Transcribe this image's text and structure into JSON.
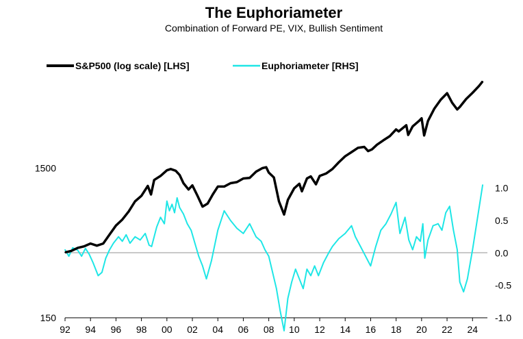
{
  "chart_data": {
    "type": "line",
    "title": "The Euphoriameter",
    "subtitle": "Combination of Forward PE, VIX, Bullish Sentiment",
    "x_axis": {
      "range": [
        1992,
        2024.9
      ],
      "tick_values": [
        1992,
        1994,
        1996,
        1998,
        2000,
        2002,
        2004,
        2006,
        2008,
        2010,
        2012,
        2014,
        2016,
        2018,
        2020,
        2022,
        2024
      ],
      "tick_labels": [
        "92",
        "94",
        "96",
        "98",
        "00",
        "02",
        "04",
        "06",
        "08",
        "10",
        "12",
        "14",
        "16",
        "18",
        "20",
        "22",
        "24"
      ]
    },
    "y_left": {
      "scale": "log",
      "range": [
        150,
        15000
      ],
      "tick_values": [
        150,
        1500
      ],
      "tick_labels": [
        "150",
        "1500"
      ]
    },
    "y_right": {
      "scale": "linear",
      "range": [
        -1.0,
        2.0
      ],
      "tick_values": [
        1.0,
        0.5,
        0.0,
        -0.5,
        -1.0
      ],
      "tick_labels": [
        "1.0",
        "0.5",
        "0.0",
        "-0.5",
        "-1.0"
      ]
    },
    "zero_line": true,
    "grid": false,
    "legend_position": "top-left",
    "series": [
      {
        "name": "S&P500 (log scale) [LHS]",
        "axis": "left",
        "color": "#000000",
        "x": [
          1992.0,
          1992.5,
          1993.0,
          1993.5,
          1994.0,
          1994.5,
          1995.0,
          1995.5,
          1996.0,
          1996.5,
          1997.0,
          1997.5,
          1998.0,
          1998.5,
          1998.75,
          1999.0,
          1999.5,
          2000.0,
          2000.3,
          2000.7,
          2001.0,
          2001.3,
          2001.7,
          2002.0,
          2002.4,
          2002.8,
          2003.2,
          2003.6,
          2004.0,
          2004.5,
          2005.0,
          2005.5,
          2006.0,
          2006.5,
          2007.0,
          2007.5,
          2007.8,
          2008.0,
          2008.4,
          2008.8,
          2009.2,
          2009.5,
          2010.0,
          2010.4,
          2010.6,
          2011.0,
          2011.3,
          2011.7,
          2012.0,
          2012.5,
          2013.0,
          2013.5,
          2014.0,
          2014.5,
          2015.0,
          2015.5,
          2015.8,
          2016.1,
          2016.5,
          2017.0,
          2017.5,
          2018.0,
          2018.2,
          2018.8,
          2018.95,
          2019.3,
          2019.8,
          2020.0,
          2020.2,
          2020.5,
          2021.0,
          2021.5,
          2022.0,
          2022.4,
          2022.8,
          2023.0,
          2023.5,
          2024.0,
          2024.5,
          2024.8
        ],
        "y": [
          410,
          420,
          440,
          450,
          470,
          455,
          470,
          540,
          620,
          680,
          770,
          900,
          980,
          1140,
          1000,
          1250,
          1330,
          1450,
          1480,
          1440,
          1350,
          1190,
          1080,
          1150,
          980,
          830,
          870,
          1000,
          1130,
          1130,
          1190,
          1210,
          1280,
          1290,
          1420,
          1500,
          1520,
          1400,
          1300,
          900,
          735,
          920,
          1100,
          1180,
          1050,
          1280,
          1320,
          1170,
          1330,
          1380,
          1480,
          1640,
          1800,
          1920,
          2050,
          2080,
          1950,
          2000,
          2150,
          2300,
          2450,
          2720,
          2640,
          2900,
          2500,
          2850,
          3100,
          3230,
          2480,
          3100,
          3750,
          4300,
          4750,
          4100,
          3700,
          3850,
          4350,
          4780,
          5300,
          5700
        ]
      },
      {
        "name": "Euphoriameter [RHS]",
        "axis": "right",
        "color": "#1EE6E6",
        "x": [
          1992.0,
          1992.3,
          1992.6,
          1993.0,
          1993.3,
          1993.6,
          1993.9,
          1994.2,
          1994.6,
          1994.9,
          1995.2,
          1995.5,
          1995.8,
          1996.2,
          1996.5,
          1996.8,
          1997.1,
          1997.5,
          1997.9,
          1998.3,
          1998.6,
          1998.8,
          1999.2,
          1999.5,
          1999.8,
          2000.0,
          2000.2,
          2000.4,
          2000.6,
          2000.8,
          2001.0,
          2001.3,
          2001.6,
          2001.9,
          2002.2,
          2002.5,
          2002.8,
          2003.1,
          2003.5,
          2004.0,
          2004.5,
          2005.0,
          2005.5,
          2006.0,
          2006.5,
          2007.0,
          2007.4,
          2007.7,
          2008.0,
          2008.3,
          2008.6,
          2008.9,
          2009.2,
          2009.5,
          2009.8,
          2010.1,
          2010.4,
          2010.7,
          2011.0,
          2011.3,
          2011.6,
          2011.9,
          2012.3,
          2012.7,
          2013.0,
          2013.5,
          2014.0,
          2014.5,
          2014.8,
          2015.2,
          2015.6,
          2016.0,
          2016.4,
          2016.8,
          2017.2,
          2017.6,
          2018.0,
          2018.3,
          2018.7,
          2019.0,
          2019.3,
          2019.6,
          2019.9,
          2020.1,
          2020.25,
          2020.5,
          2020.9,
          2021.3,
          2021.6,
          2021.9,
          2022.2,
          2022.5,
          2022.8,
          2023.0,
          2023.3,
          2023.6,
          2024.0,
          2024.4,
          2024.8
        ],
        "y": [
          0.05,
          -0.05,
          0.08,
          0.04,
          -0.05,
          0.07,
          -0.02,
          -0.15,
          -0.35,
          -0.3,
          -0.08,
          0.05,
          0.15,
          0.25,
          0.18,
          0.28,
          0.15,
          0.25,
          0.2,
          0.3,
          0.12,
          0.1,
          0.4,
          0.55,
          0.45,
          0.8,
          0.65,
          0.75,
          0.62,
          0.85,
          0.7,
          0.6,
          0.45,
          0.35,
          0.15,
          -0.05,
          -0.2,
          -0.4,
          -0.12,
          0.35,
          0.65,
          0.5,
          0.38,
          0.3,
          0.45,
          0.25,
          0.18,
          0.05,
          -0.05,
          -0.3,
          -0.55,
          -0.9,
          -1.2,
          -0.7,
          -0.45,
          -0.25,
          -0.4,
          -0.55,
          -0.25,
          -0.35,
          -0.2,
          -0.35,
          -0.15,
          0.0,
          0.1,
          0.22,
          0.3,
          0.42,
          0.25,
          0.1,
          -0.05,
          -0.2,
          0.1,
          0.35,
          0.45,
          0.6,
          0.78,
          0.3,
          0.55,
          0.2,
          0.05,
          0.25,
          0.18,
          0.45,
          -0.08,
          0.2,
          0.42,
          0.45,
          0.35,
          0.62,
          0.72,
          0.35,
          0.05,
          -0.45,
          -0.6,
          -0.4,
          0.05,
          0.55,
          1.05
        ]
      }
    ]
  }
}
